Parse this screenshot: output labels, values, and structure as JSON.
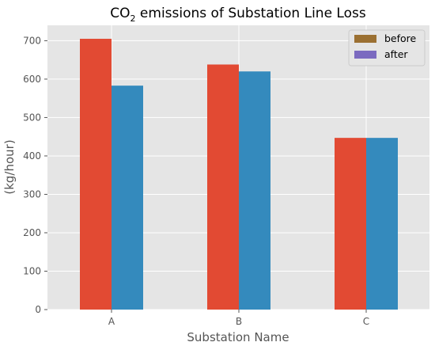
{
  "chart_data": {
    "type": "bar",
    "title_main": "CO",
    "title_sub": "2",
    "title_rest": " emissions of Substation Line Loss",
    "xlabel": "Substation Name",
    "ylabel": "(kg/hour)",
    "categories": [
      "A",
      "B",
      "C"
    ],
    "series": [
      {
        "name": "before",
        "values": [
          705,
          638,
          447
        ],
        "color": "#E24A33",
        "legend_color": "#9B7032"
      },
      {
        "name": "after",
        "values": [
          583,
          620,
          447
        ],
        "color": "#348ABD",
        "legend_color": "#7B6AC0"
      }
    ],
    "ylim": [
      0,
      740
    ],
    "yticks": [
      0,
      100,
      200,
      300,
      400,
      500,
      600,
      700
    ],
    "grid": true,
    "legend_position": "top-right",
    "background": "#E5E5E5",
    "grid_color": "#FFFFFF"
  }
}
